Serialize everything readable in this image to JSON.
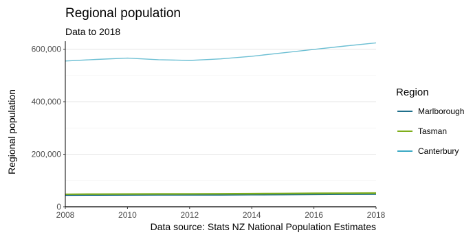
{
  "chart_data": {
    "type": "line",
    "title": "Regional population",
    "subtitle": "Data to 2018",
    "xlabel": "",
    "ylabel": "Regional population",
    "caption": "Data source: Stats NZ National Population Estimates",
    "xlim": [
      2008,
      2018
    ],
    "ylim": [
      0,
      625000
    ],
    "x_ticks": [
      2008,
      2010,
      2012,
      2014,
      2016,
      2018
    ],
    "y_ticks": [
      0,
      200000,
      400000,
      600000
    ],
    "y_tick_labels": [
      "0",
      "200,000",
      "400,000",
      "600,000"
    ],
    "grid": true,
    "legend": {
      "title": "Region",
      "position": "right"
    },
    "x": [
      2008,
      2009,
      2010,
      2011,
      2012,
      2013,
      2014,
      2015,
      2016,
      2017,
      2018
    ],
    "series": [
      {
        "name": "Marlborough",
        "color": "#1f6f8b",
        "values": [
          44500,
          44800,
          45100,
          45200,
          45300,
          45500,
          45900,
          46400,
          47000,
          47600,
          48200
        ]
      },
      {
        "name": "Tasman",
        "color": "#7fae1b",
        "values": [
          47500,
          48000,
          48500,
          48700,
          48900,
          49200,
          49800,
          50500,
          51200,
          51800,
          52400
        ]
      },
      {
        "name": "Canterbury",
        "color": "#3ba9c4",
        "values": [
          555000,
          561000,
          566000,
          560000,
          557000,
          563000,
          573000,
          586000,
          599000,
          612000,
          624000
        ]
      }
    ]
  }
}
